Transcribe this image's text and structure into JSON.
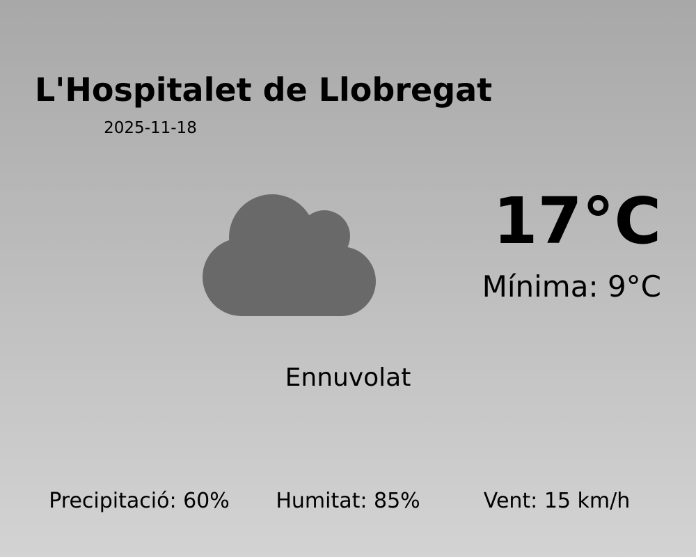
{
  "city": "L'Hospitalet de Llobregat",
  "date": "2025-11-18",
  "temperature": "17°C",
  "minimum": "Mínima: 9°C",
  "condition": "Ennuvolat",
  "icon": "cloud-icon",
  "colors": {
    "icon": "#696969",
    "background_top": "#a8a8a8",
    "background_bottom": "#d3d3d3"
  },
  "stats": {
    "precipitation": "Precipitació: 60%",
    "humidity": "Humitat: 85%",
    "wind": "Vent: 15 km/h"
  }
}
